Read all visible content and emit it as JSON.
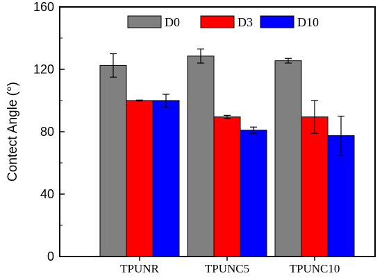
{
  "chart_data": {
    "type": "bar",
    "title": "",
    "xlabel": "",
    "ylabel": "Contect Angle (°)",
    "ylim": [
      0,
      160
    ],
    "yticks": [
      0,
      40,
      80,
      120,
      160
    ],
    "categories": [
      "TPUNR",
      "TPUNC5",
      "TPUNC10"
    ],
    "series": [
      {
        "name": "D0",
        "color": "#808080",
        "values": [
          122.5,
          128.5,
          125.5
        ],
        "errors": [
          7.5,
          4.5,
          1.5
        ]
      },
      {
        "name": "D3",
        "color": "#ff0000",
        "values": [
          100,
          89.5,
          89.5
        ],
        "errors": [
          0.3,
          1,
          10.5
        ]
      },
      {
        "name": "D10",
        "color": "#0000ff",
        "values": [
          100,
          81,
          77.5
        ],
        "errors": [
          4,
          2,
          12.5
        ]
      }
    ],
    "legend_position": "top",
    "grid": false
  }
}
